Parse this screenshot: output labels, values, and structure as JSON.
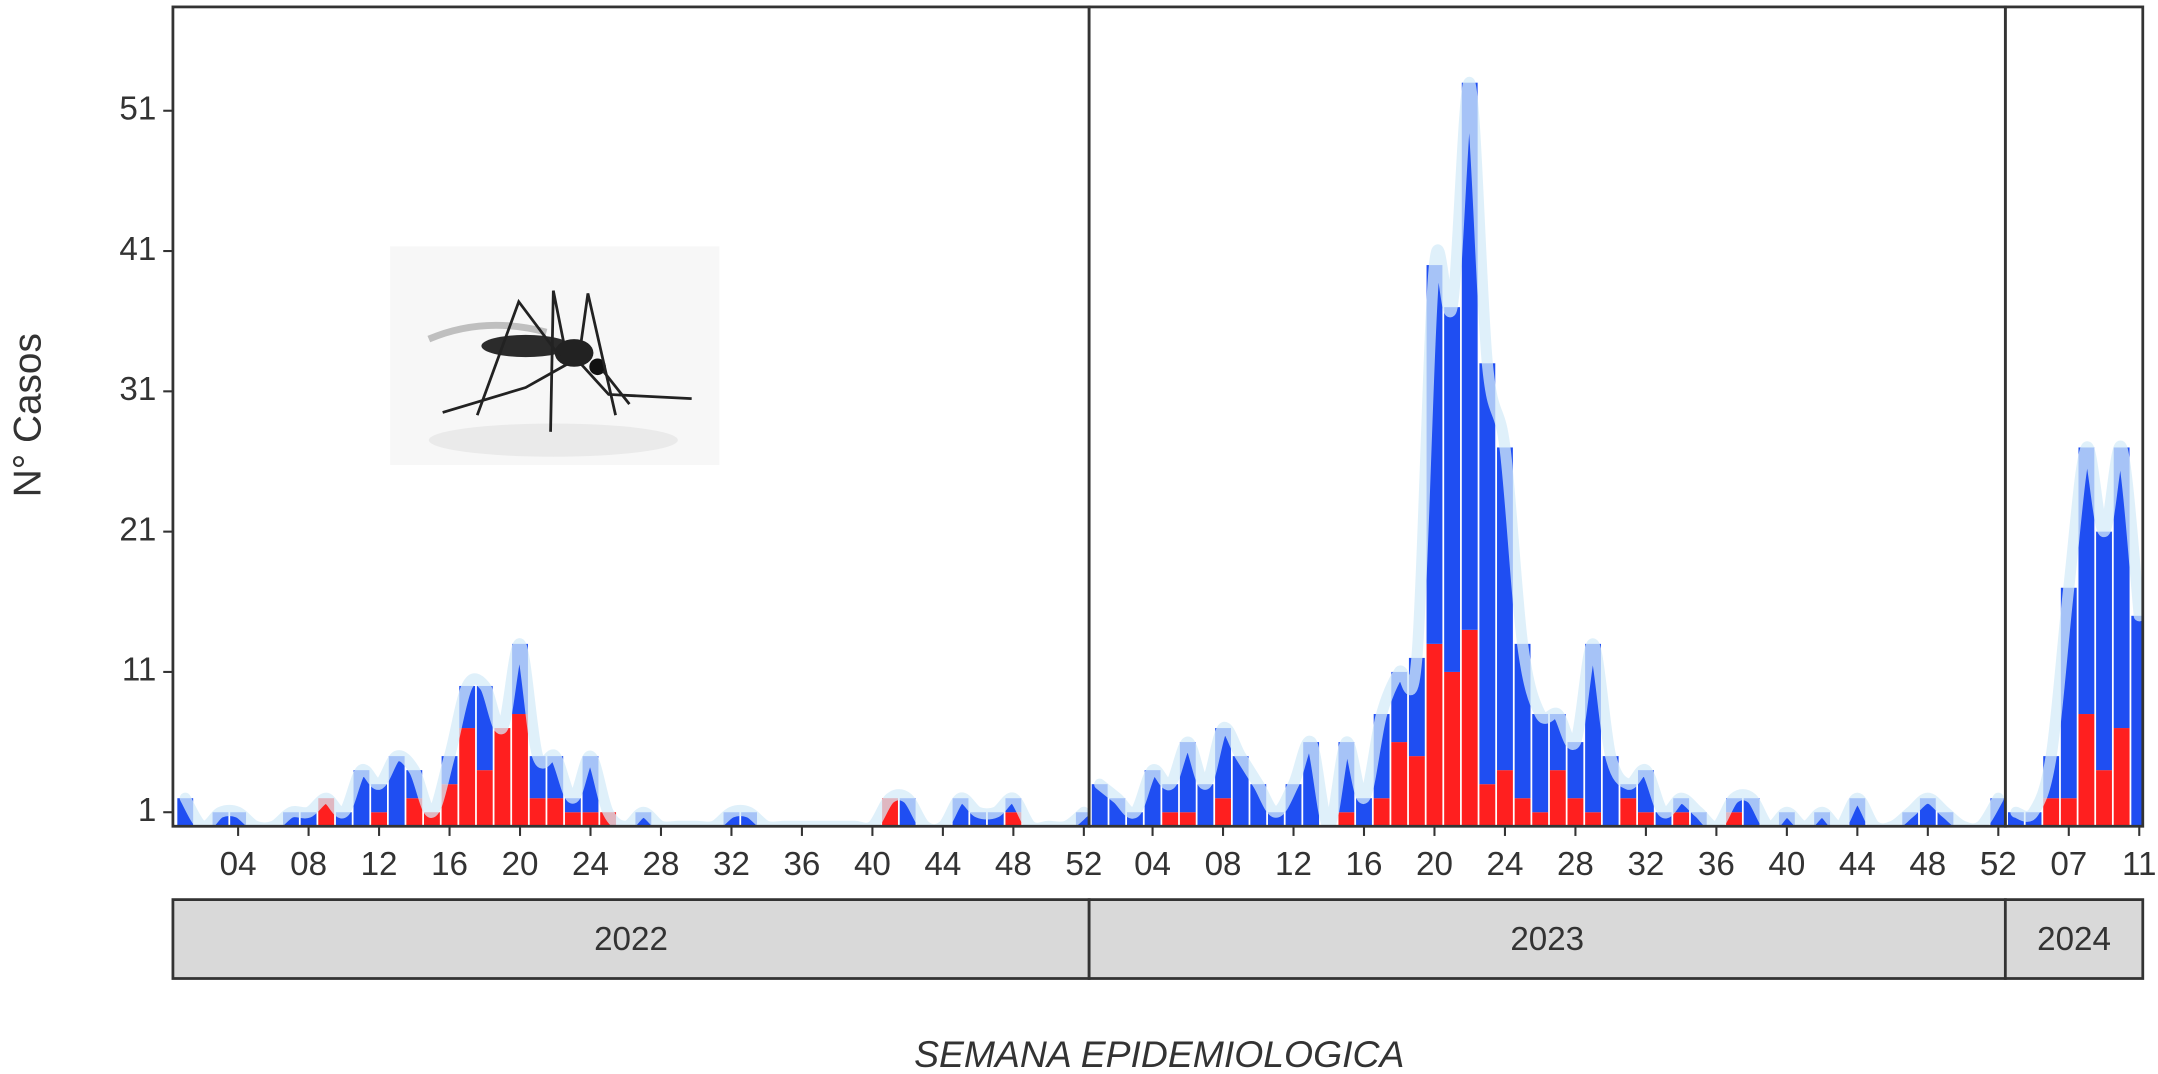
{
  "chart_data": {
    "type": "bar",
    "ylabel": "N° Casos",
    "xlabel": "SEMANA EPIDEMIOLOGICA",
    "ylim": [
      0,
      58.4
    ],
    "yticks": [
      1,
      11,
      21,
      31,
      41,
      51
    ],
    "panels": [
      {
        "label": "2022",
        "xlim": [
          0.3,
          52.3
        ],
        "xticks": [
          {
            "value": 4,
            "label": "04"
          },
          {
            "value": 8,
            "label": "08"
          },
          12,
          16,
          20,
          24,
          28,
          32,
          36,
          40,
          44,
          48,
          52
        ],
        "x": [
          1,
          2,
          3,
          4,
          5,
          6,
          7,
          8,
          9,
          10,
          11,
          12,
          13,
          14,
          15,
          16,
          17,
          18,
          19,
          20,
          21,
          22,
          23,
          24,
          25,
          26,
          27,
          28,
          29,
          30,
          31,
          32,
          33,
          34,
          35,
          36,
          37,
          38,
          39,
          40,
          41,
          42,
          43,
          44,
          45,
          46,
          47,
          48,
          49,
          50,
          51,
          52
        ],
        "series": [
          {
            "color": "#ff1f1f",
            "values": [
              0,
              0,
              0,
              0,
              0,
              0,
              0,
              0,
              2,
              0,
              0,
              1,
              0,
              2,
              1,
              3,
              7,
              4,
              7,
              8,
              2,
              2,
              1,
              1,
              1,
              0,
              0,
              0,
              0,
              0,
              0,
              0,
              0,
              0,
              0,
              0,
              0,
              0,
              0,
              0,
              2,
              0,
              0,
              0,
              0,
              0,
              0,
              1,
              0,
              0,
              0,
              0
            ]
          },
          {
            "color": "#1f4ef2",
            "values": [
              2,
              0,
              1,
              1,
              0,
              0,
              1,
              1,
              0,
              1,
              4,
              2,
              5,
              2,
              0,
              2,
              3,
              6,
              0,
              5,
              3,
              3,
              1,
              4,
              0,
              0,
              1,
              0,
              0,
              0,
              0,
              1,
              1,
              0,
              0,
              0,
              0,
              0,
              0,
              0,
              0,
              2,
              0,
              0,
              2,
              1,
              1,
              1,
              0,
              0,
              0,
              1
            ]
          },
          {
            "type": "line",
            "color": "#d4ebf8",
            "values": [
              2,
              0,
              1,
              1,
              0,
              0,
              1,
              1,
              2,
              1,
              4,
              3,
              5,
              4,
              1,
              5,
              10,
              10,
              7,
              13,
              5,
              5,
              2,
              5,
              1,
              0,
              1,
              0,
              0,
              0,
              0,
              1,
              1,
              0,
              0,
              0,
              0,
              0,
              0,
              0,
              2,
              2,
              0,
              0,
              2,
              1,
              1,
              2,
              0,
              0,
              0,
              1
            ]
          }
        ]
      },
      {
        "label": "2023",
        "xlim": [
          0.4,
          52.4
        ],
        "xticks": [
          {
            "value": 4,
            "label": "04"
          },
          {
            "value": 8,
            "label": "08"
          },
          12,
          16,
          20,
          24,
          28,
          32,
          36,
          40,
          44,
          48,
          52
        ],
        "x": [
          1,
          2,
          3,
          4,
          5,
          6,
          7,
          8,
          9,
          10,
          11,
          12,
          13,
          14,
          15,
          16,
          17,
          18,
          19,
          20,
          21,
          22,
          23,
          24,
          25,
          26,
          27,
          28,
          29,
          30,
          31,
          32,
          33,
          34,
          35,
          36,
          37,
          38,
          39,
          40,
          41,
          42,
          43,
          44,
          45,
          46,
          47,
          48,
          49,
          50,
          51,
          52
        ],
        "series": [
          {
            "color": "#ff1f1f",
            "values": [
              0,
              0,
              0,
              0,
              1,
              1,
              0,
              2,
              0,
              0,
              0,
              0,
              0,
              0,
              1,
              0,
              2,
              6,
              5,
              13,
              11,
              14,
              3,
              4,
              2,
              1,
              4,
              2,
              1,
              0,
              2,
              1,
              0,
              1,
              0,
              0,
              1,
              0,
              0,
              0,
              0,
              0,
              0,
              0,
              0,
              0,
              0,
              0,
              0,
              0,
              0,
              0
            ]
          },
          {
            "color": "#1f4ef2",
            "values": [
              3,
              2,
              1,
              4,
              2,
              5,
              3,
              5,
              5,
              3,
              1,
              3,
              6,
              0,
              5,
              2,
              6,
              5,
              7,
              27,
              26,
              39,
              30,
              23,
              11,
              7,
              4,
              4,
              12,
              5,
              1,
              3,
              1,
              1,
              1,
              0,
              1,
              2,
              0,
              1,
              0,
              1,
              0,
              2,
              0,
              0,
              1,
              2,
              1,
              0,
              0,
              2
            ]
          },
          {
            "type": "line",
            "color": "#d4ebf8",
            "values": [
              3,
              2,
              1,
              4,
              3,
              6,
              3,
              7,
              5,
              3,
              1,
              3,
              6,
              0,
              6,
              2,
              8,
              11,
              12,
              40,
              37,
              53,
              33,
              27,
              13,
              8,
              8,
              6,
              13,
              5,
              3,
              4,
              1,
              2,
              1,
              0,
              2,
              2,
              0,
              1,
              0,
              1,
              0,
              2,
              0,
              0,
              1,
              2,
              1,
              0,
              0,
              2
            ]
          }
        ]
      },
      {
        "label": "2024",
        "xlim": [
          3.4,
          11.2
        ],
        "xticks": [
          {
            "value": 7,
            "label": "07"
          },
          11
        ],
        "x": [
          4,
          5,
          6,
          7,
          8,
          9,
          10,
          11
        ],
        "series": [
          {
            "color": "#ff1f1f",
            "values": [
              0,
              0,
              2,
              2,
              8,
              4,
              7,
              0
            ]
          },
          {
            "color": "#1f4ef2",
            "values": [
              1,
              1,
              3,
              15,
              19,
              17,
              20,
              15
            ]
          },
          {
            "type": "line",
            "color": "#d4ebf8",
            "values": [
              1,
              1,
              5,
              17,
              27,
              21,
              27,
              15
            ]
          }
        ]
      }
    ]
  }
}
